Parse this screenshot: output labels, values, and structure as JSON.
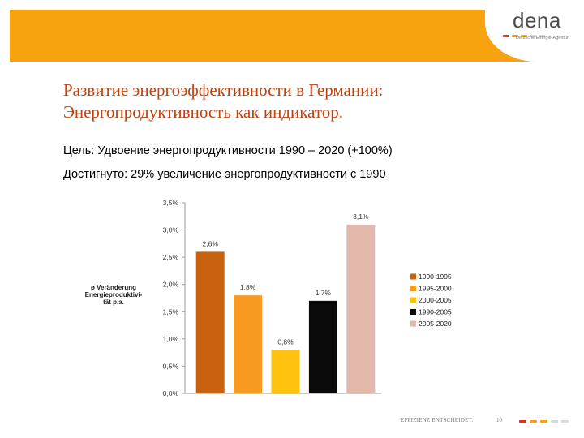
{
  "logo": {
    "word": "dena",
    "tagline": "Deutsche Energie-Agentur",
    "dash_colors": [
      "#c8372d",
      "#f0a31a",
      "#f5c400",
      "#d9d9d9",
      "#d9d9d9"
    ]
  },
  "slide": {
    "title_line1": "Развитие энергоэффективности в Германии:",
    "title_line2": "Энергопродуктивность как индикатор.",
    "goal": "Цель: Удвоение энергопродуктивности 1990 – 2020 (+100%)",
    "achieved": "Достигнуто: 29% увеличение энергопродуктивности с 1990"
  },
  "chart_data": {
    "type": "bar",
    "ylabel_lines": [
      "ø Veränderung",
      "Energieproduktivi-",
      "tät p.a."
    ],
    "ylim": [
      0,
      3.5
    ],
    "yticks": [
      0,
      0.5,
      1.0,
      1.5,
      2.0,
      2.5,
      3.0,
      3.5
    ],
    "ytick_labels": [
      "0,0%",
      "0,5%",
      "1,0%",
      "1,5%",
      "2,0%",
      "2,5%",
      "3,0%",
      "3,5%"
    ],
    "grid": false,
    "legend_position": "right",
    "categories": [
      "1990-1995",
      "1995-2000",
      "2000-2005",
      "1990-2005",
      "2005-2020"
    ],
    "values": [
      2.6,
      1.8,
      0.8,
      1.7,
      3.1
    ],
    "data_labels": [
      "2,6%",
      "1,8%",
      "0,8%",
      "1,7%",
      "3,1%"
    ],
    "colors": [
      "#c8620e",
      "#f79a1f",
      "#ffc20e",
      "#0a0a0a",
      "#e2b8ab"
    ]
  },
  "footer": {
    "text": "EFFIZIENZ ENTSCHEIDET.",
    "page": "10",
    "dash_colors": [
      "#c8372d",
      "#f0a31a",
      "#f0a31a",
      "#d9d9d9",
      "#d9d9d9"
    ]
  }
}
